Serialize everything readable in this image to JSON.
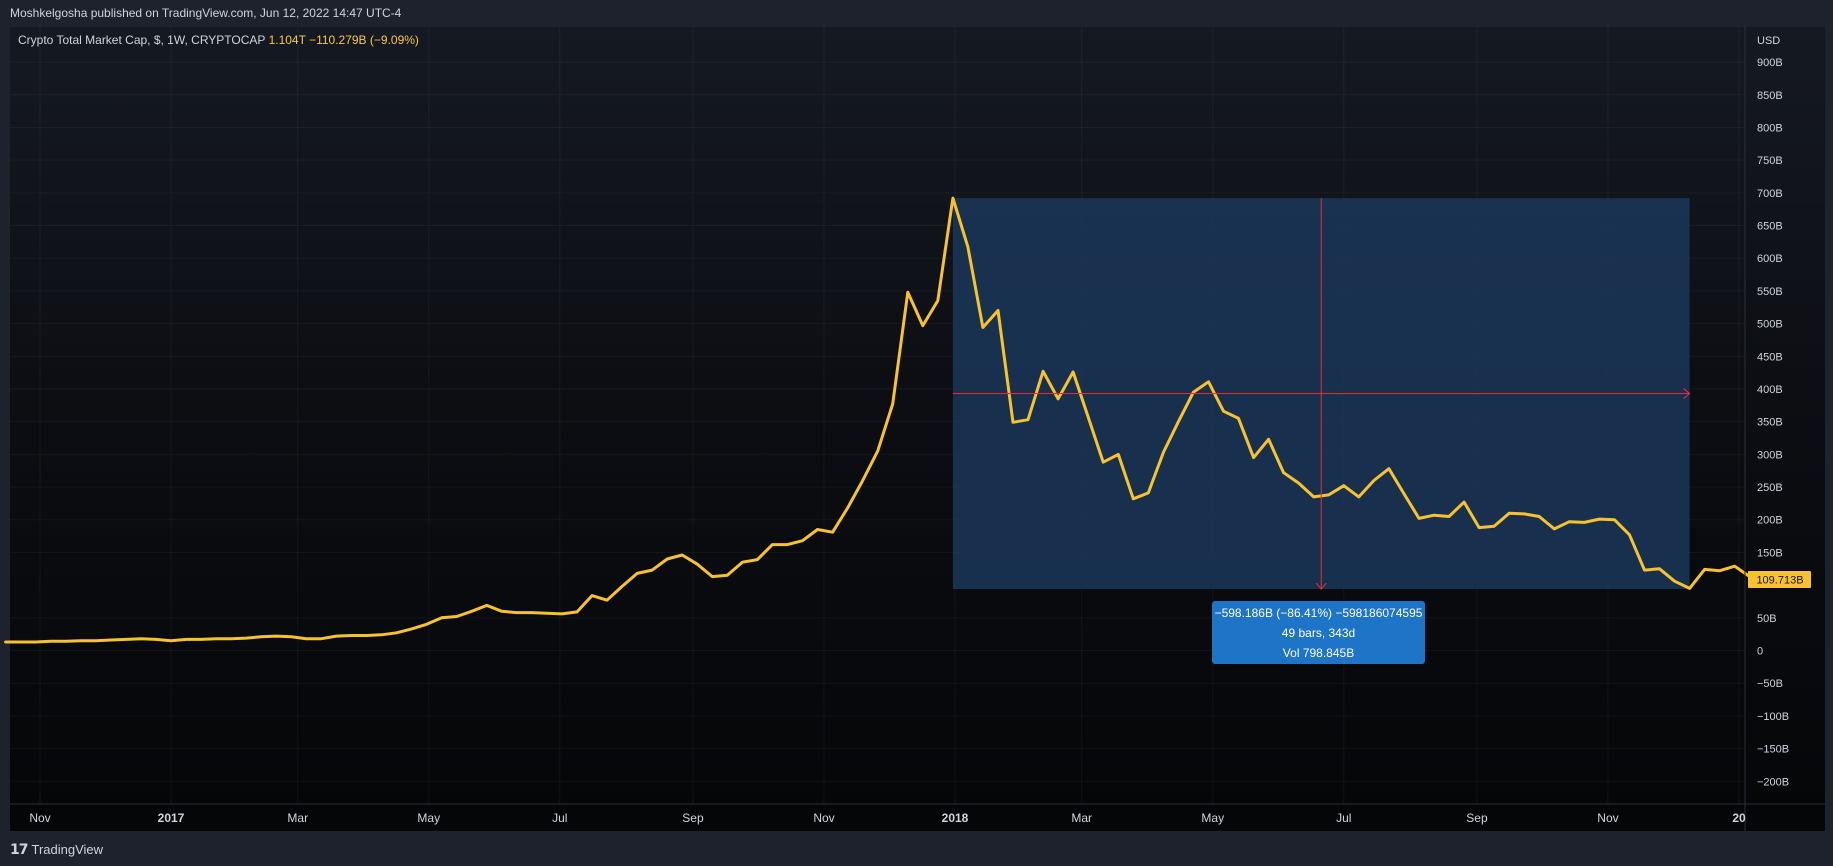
{
  "header": {
    "publish_text": "Moshkelgosha published on TradingView.com, Jun 12, 2022 14:47 UTC-4"
  },
  "legend": {
    "symbol": "Crypto Total Market Cap, $, 1W, CRYPTOCAP",
    "last": "1.104T",
    "change": "−110.279B (−9.09%)"
  },
  "footer": {
    "brand": "TradingView"
  },
  "measure": {
    "line1": "−598.186B (−86.41%) −598186074595",
    "line2": "49 bars, 343d",
    "line3": "Vol 798.845B"
  },
  "colors": {
    "line": "#f7c22f",
    "measure_box": "#1b3a5e",
    "measure_line": "#e0303a",
    "tooltip": "#1e74c7",
    "price_label": "#f7c22f"
  },
  "chart_data": {
    "type": "line",
    "currency": "USD",
    "price_label": "109.713B",
    "ylim": [
      -220,
      900
    ],
    "y_ticks": [
      {
        "v": 900,
        "label": "900B"
      },
      {
        "v": 850,
        "label": "850B"
      },
      {
        "v": 800,
        "label": "800B"
      },
      {
        "v": 750,
        "label": "750B"
      },
      {
        "v": 700,
        "label": "700B"
      },
      {
        "v": 650,
        "label": "650B"
      },
      {
        "v": 600,
        "label": "600B"
      },
      {
        "v": 550,
        "label": "550B"
      },
      {
        "v": 500,
        "label": "500B"
      },
      {
        "v": 450,
        "label": "450B"
      },
      {
        "v": 400,
        "label": "400B"
      },
      {
        "v": 350,
        "label": "350B"
      },
      {
        "v": 300,
        "label": "300B"
      },
      {
        "v": 250,
        "label": "250B"
      },
      {
        "v": 200,
        "label": "200B"
      },
      {
        "v": 150,
        "label": "150B"
      },
      {
        "v": 50,
        "label": "50B"
      },
      {
        "v": 0,
        "label": "0"
      },
      {
        "v": -50,
        "label": "−50B"
      },
      {
        "v": -100,
        "label": "−100B"
      },
      {
        "v": -150,
        "label": "−150B"
      },
      {
        "v": -200,
        "label": "−200B"
      }
    ],
    "x_ticks": [
      {
        "x": "2016-11-01",
        "label": "Nov",
        "bold": false
      },
      {
        "x": "2017-01-01",
        "label": "2017",
        "bold": true
      },
      {
        "x": "2017-03-01",
        "label": "Mar",
        "bold": false
      },
      {
        "x": "2017-05-01",
        "label": "May",
        "bold": false
      },
      {
        "x": "2017-07-01",
        "label": "Jul",
        "bold": false
      },
      {
        "x": "2017-09-01",
        "label": "Sep",
        "bold": false
      },
      {
        "x": "2017-11-01",
        "label": "Nov",
        "bold": false
      },
      {
        "x": "2018-01-01",
        "label": "2018",
        "bold": true
      },
      {
        "x": "2018-03-01",
        "label": "Mar",
        "bold": false
      },
      {
        "x": "2018-05-01",
        "label": "May",
        "bold": false
      },
      {
        "x": "2018-07-01",
        "label": "Jul",
        "bold": false
      },
      {
        "x": "2018-09-01",
        "label": "Sep",
        "bold": false
      },
      {
        "x": "2018-11-01",
        "label": "Nov",
        "bold": false
      },
      {
        "x": "2019-01-01",
        "label": "20",
        "bold": true
      }
    ],
    "series": [
      {
        "values": [
          [
            "2016-10-16",
            13
          ],
          [
            "2016-10-23",
            13
          ],
          [
            "2016-10-30",
            13
          ],
          [
            "2016-11-06",
            14
          ],
          [
            "2016-11-13",
            14
          ],
          [
            "2016-11-20",
            15
          ],
          [
            "2016-11-27",
            15
          ],
          [
            "2016-12-04",
            16
          ],
          [
            "2016-12-11",
            17
          ],
          [
            "2016-12-18",
            18
          ],
          [
            "2016-12-25",
            17
          ],
          [
            "2017-01-01",
            15
          ],
          [
            "2017-01-08",
            17
          ],
          [
            "2017-01-15",
            17
          ],
          [
            "2017-01-22",
            18
          ],
          [
            "2017-01-29",
            18
          ],
          [
            "2017-02-05",
            19
          ],
          [
            "2017-02-12",
            21
          ],
          [
            "2017-02-19",
            22
          ],
          [
            "2017-02-26",
            21
          ],
          [
            "2017-03-05",
            18
          ],
          [
            "2017-03-12",
            18
          ],
          [
            "2017-03-19",
            22
          ],
          [
            "2017-03-26",
            23
          ],
          [
            "2017-04-02",
            23
          ],
          [
            "2017-04-09",
            24
          ],
          [
            "2017-04-16",
            27
          ],
          [
            "2017-04-23",
            33
          ],
          [
            "2017-04-30",
            40
          ],
          [
            "2017-05-07",
            50
          ],
          [
            "2017-05-14",
            52
          ],
          [
            "2017-05-21",
            60
          ],
          [
            "2017-05-28",
            69
          ],
          [
            "2017-06-04",
            60
          ],
          [
            "2017-06-11",
            58
          ],
          [
            "2017-06-18",
            58
          ],
          [
            "2017-06-25",
            57
          ],
          [
            "2017-07-02",
            56
          ],
          [
            "2017-07-09",
            59
          ],
          [
            "2017-07-16",
            84
          ],
          [
            "2017-07-23",
            77
          ],
          [
            "2017-07-30",
            98
          ],
          [
            "2017-08-06",
            118
          ],
          [
            "2017-08-13",
            123
          ],
          [
            "2017-08-20",
            140
          ],
          [
            "2017-08-27",
            146
          ],
          [
            "2017-09-03",
            132
          ],
          [
            "2017-09-10",
            113
          ],
          [
            "2017-09-17",
            115
          ],
          [
            "2017-09-24",
            135
          ],
          [
            "2017-10-01",
            139
          ],
          [
            "2017-10-08",
            162
          ],
          [
            "2017-10-15",
            162
          ],
          [
            "2017-10-22",
            168
          ],
          [
            "2017-10-29",
            185
          ],
          [
            "2017-11-05",
            181
          ],
          [
            "2017-11-12",
            218
          ],
          [
            "2017-11-19",
            260
          ],
          [
            "2017-11-26",
            305
          ],
          [
            "2017-12-03",
            377
          ],
          [
            "2017-12-10",
            548
          ],
          [
            "2017-12-17",
            497
          ],
          [
            "2017-12-24",
            535
          ],
          [
            "2017-12-31",
            692
          ],
          [
            "2018-01-07",
            617
          ],
          [
            "2018-01-14",
            494
          ],
          [
            "2018-01-21",
            520
          ],
          [
            "2018-01-28",
            349
          ],
          [
            "2018-02-04",
            353
          ],
          [
            "2018-02-11",
            427
          ],
          [
            "2018-02-18",
            385
          ],
          [
            "2018-02-25",
            426
          ],
          [
            "2018-03-04",
            357
          ],
          [
            "2018-03-11",
            288
          ],
          [
            "2018-03-18",
            300
          ],
          [
            "2018-03-25",
            232
          ],
          [
            "2018-04-01",
            241
          ],
          [
            "2018-04-08",
            303
          ],
          [
            "2018-04-15",
            350
          ],
          [
            "2018-04-22",
            395
          ],
          [
            "2018-04-29",
            411
          ],
          [
            "2018-05-06",
            366
          ],
          [
            "2018-05-13",
            355
          ],
          [
            "2018-05-20",
            295
          ],
          [
            "2018-05-27",
            323
          ],
          [
            "2018-06-03",
            272
          ],
          [
            "2018-06-10",
            256
          ],
          [
            "2018-06-17",
            235
          ],
          [
            "2018-06-24",
            238
          ],
          [
            "2018-07-01",
            252
          ],
          [
            "2018-07-08",
            235
          ],
          [
            "2018-07-15",
            260
          ],
          [
            "2018-07-22",
            278
          ],
          [
            "2018-07-29",
            240
          ],
          [
            "2018-08-05",
            202
          ],
          [
            "2018-08-12",
            207
          ],
          [
            "2018-08-19",
            205
          ],
          [
            "2018-08-26",
            227
          ],
          [
            "2018-09-02",
            188
          ],
          [
            "2018-09-09",
            190
          ],
          [
            "2018-09-16",
            210
          ],
          [
            "2018-09-23",
            209
          ],
          [
            "2018-09-30",
            205
          ],
          [
            "2018-10-07",
            186
          ],
          [
            "2018-10-14",
            197
          ],
          [
            "2018-10-21",
            196
          ],
          [
            "2018-10-28",
            201
          ],
          [
            "2018-11-04",
            200
          ],
          [
            "2018-11-11",
            177
          ],
          [
            "2018-11-18",
            123
          ],
          [
            "2018-11-25",
            125
          ],
          [
            "2018-12-02",
            106
          ],
          [
            "2018-12-09",
            95
          ],
          [
            "2018-12-16",
            124
          ],
          [
            "2018-12-23",
            122
          ],
          [
            "2018-12-30",
            129
          ],
          [
            "2019-01-06",
            113
          ]
        ]
      }
    ],
    "measure_range": {
      "x0": "2017-12-31",
      "x1": "2018-12-09",
      "y0": 692,
      "y1": 94
    }
  }
}
